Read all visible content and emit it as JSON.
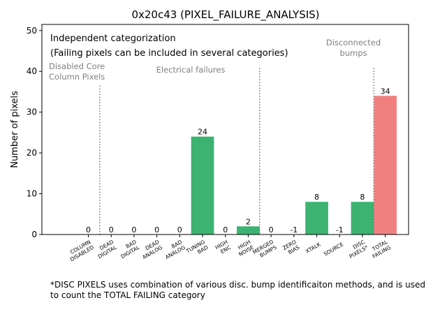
{
  "chart_data": {
    "type": "bar",
    "title": "0x20c43 (PIXEL_FAILURE_ANALYSIS)",
    "xlabel": "",
    "ylabel": "Number of pixels",
    "ylim": [
      0,
      51.5
    ],
    "yticks": [
      0,
      10,
      20,
      30,
      40,
      50
    ],
    "grid": false,
    "categories": [
      [
        "COLUMN",
        "DISABLED"
      ],
      [
        "DEAD",
        "DIGITAL"
      ],
      [
        "BAD",
        "DIGITAL"
      ],
      [
        "DEAD",
        "ANALOG"
      ],
      [
        "BAD",
        "ANALOG"
      ],
      [
        "TUNING",
        "BAD"
      ],
      [
        "HIGH",
        "ENC"
      ],
      [
        "HIGH",
        "NOISE"
      ],
      [
        "MERGED",
        "BUMPS"
      ],
      [
        "ZERO",
        "BIAS"
      ],
      [
        "XTALK"
      ],
      [
        "SOURCE"
      ],
      [
        "DISC",
        "PIXELS*"
      ],
      [
        "TOTAL",
        "FAILING"
      ]
    ],
    "values": [
      0,
      0,
      0,
      0,
      0,
      24,
      0,
      2,
      0,
      -1,
      8,
      -1,
      8,
      34
    ],
    "bar_colors": [
      "#3cb371",
      "#3cb371",
      "#3cb371",
      "#3cb371",
      "#3cb371",
      "#3cb371",
      "#3cb371",
      "#3cb371",
      "#3cb371",
      "#3cb371",
      "#3cb371",
      "#3cb371",
      "#3cb371",
      "#f08080"
    ],
    "value_labels": [
      "0",
      "0",
      "0",
      "0",
      "0",
      "24",
      "0",
      "2",
      "0",
      "-1",
      "8",
      "-1",
      "8",
      "34"
    ],
    "separators": [
      {
        "after_index": 0,
        "top": 36.5
      },
      {
        "after_index": 7,
        "top": 40.8
      },
      {
        "after_index": 12,
        "top": 40.8
      }
    ],
    "annotations": {
      "heading": "Independent categorization",
      "subheading": "(Failing pixels can be included in several categories)",
      "group_disabled_core": [
        "Disabled Core",
        "Column Pixels"
      ],
      "group_electrical": "Electrical failures",
      "group_disconnected": [
        "Disconnected",
        "bumps"
      ]
    },
    "footnote": [
      "*DISC PIXELS uses combination of various disc. bump identificaiton methods, and is used",
      "to count the TOTAL FAILING category"
    ]
  }
}
